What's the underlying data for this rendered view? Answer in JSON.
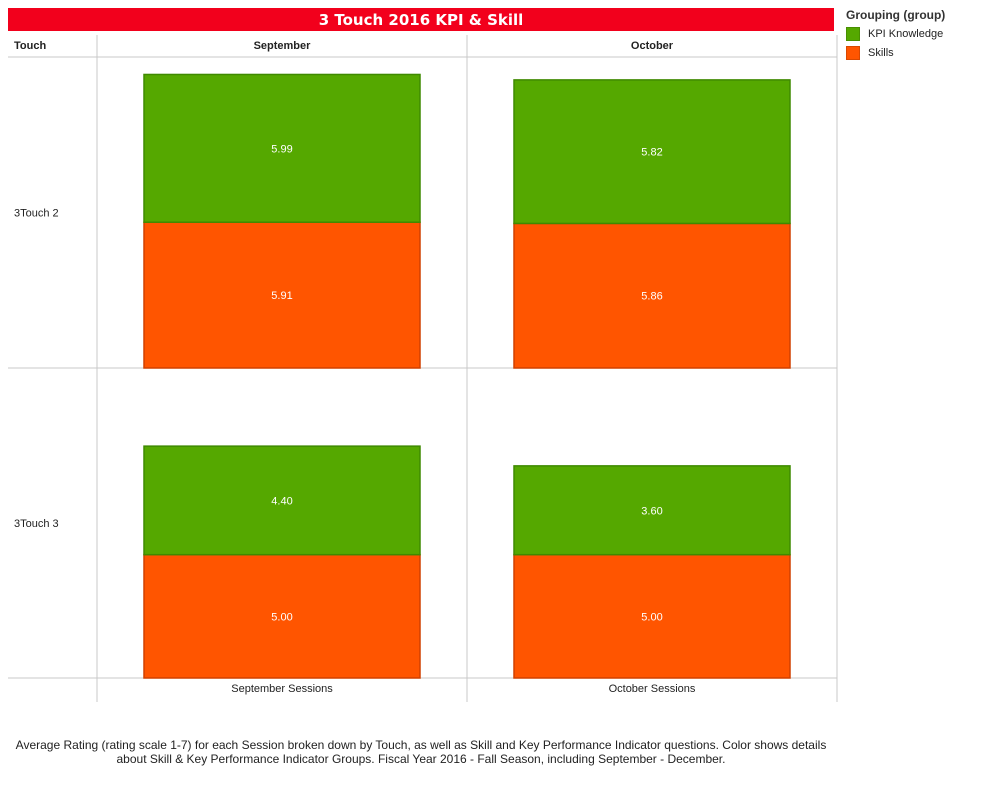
{
  "chart_data": {
    "type": "bar",
    "stacked": true,
    "title": "3 Touch 2016 KPI & Skill",
    "row_header": "Touch",
    "columns": [
      "September",
      "October"
    ],
    "column_footers": [
      "September Sessions",
      "October Sessions"
    ],
    "rows": [
      "3Touch 2",
      "3Touch 3"
    ],
    "legend": {
      "title": "Grouping (group)",
      "position": "top-right",
      "items": [
        {
          "name": "KPI Knowledge",
          "color": "#55a800"
        },
        {
          "name": "Skills",
          "color": "#ff5500"
        }
      ]
    },
    "series": [
      {
        "name": "KPI Knowledge",
        "color": "#55a800",
        "values": [
          [
            5.99,
            5.82
          ],
          [
            4.4,
            3.6
          ]
        ]
      },
      {
        "name": "Skills",
        "color": "#ff5500",
        "values": [
          [
            5.91,
            5.86
          ],
          [
            5.0,
            5.0
          ]
        ]
      }
    ],
    "ylim": [
      0,
      12
    ],
    "grid": false,
    "caption": "Average Rating (rating scale 1-7) for each Session broken down by Touch, as well as Skill and Key Performance Indicator questions.  Color shows details about Skill & Key Performance Indicator Groups.  Fiscal Year 2016 -  Fall Season, including September - December."
  }
}
